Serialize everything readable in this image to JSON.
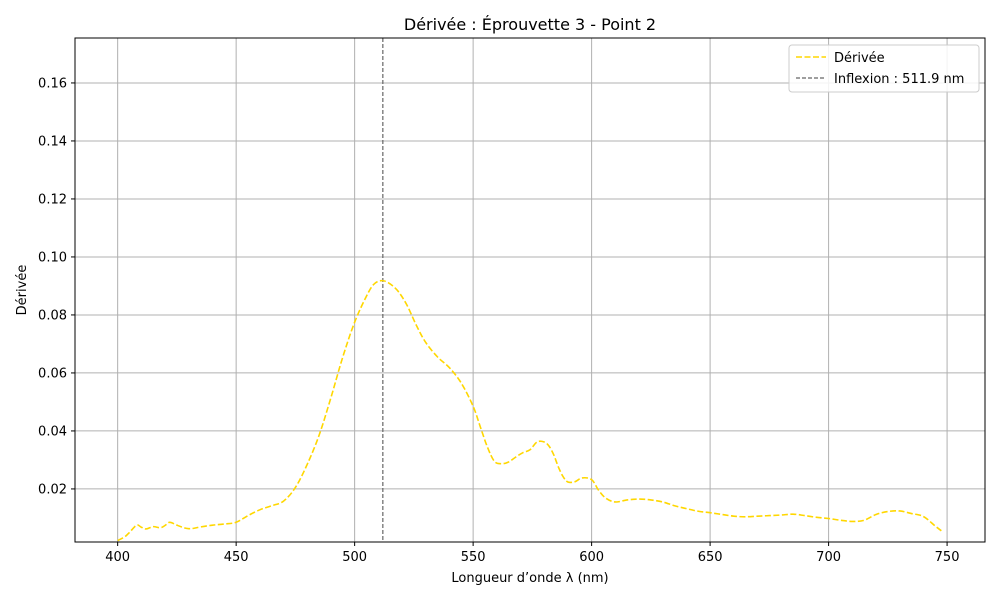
{
  "chart_data": {
    "type": "line",
    "title": "Dérivée : Éprouvette 3 - Point 2",
    "xlabel": "Longueur d’onde λ (nm)",
    "ylabel": "Dérivée",
    "xlim": [
      382,
      766
    ],
    "ylim": [
      0.0017,
      0.1755
    ],
    "xticks": [
      400,
      450,
      500,
      550,
      600,
      650,
      700,
      750
    ],
    "yticks": [
      0.02,
      0.04,
      0.06,
      0.08,
      0.1,
      0.12,
      0.14,
      0.16
    ],
    "ytick_labels": [
      "0.02",
      "0.04",
      "0.06",
      "0.08",
      "0.10",
      "0.12",
      "0.14",
      "0.16"
    ],
    "grid": true,
    "legend_position": "upper-right",
    "series": [
      {
        "name": "Dérivée",
        "color": "#ffd700",
        "style": "dashed",
        "x": [
          400,
          403,
          405,
          408,
          410,
          412,
          415,
          418,
          420,
          422,
          425,
          428,
          430,
          432,
          435,
          440,
          445,
          450,
          455,
          460,
          465,
          470,
          475,
          480,
          485,
          490,
          495,
          500,
          505,
          508,
          511,
          514,
          518,
          522,
          526,
          530,
          535,
          540,
          545,
          550,
          553,
          556,
          559,
          562,
          565,
          568,
          571,
          574,
          577,
          580,
          582,
          584,
          586,
          588,
          590,
          593,
          596,
          600,
          603,
          606,
          610,
          615,
          620,
          625,
          630,
          635,
          640,
          645,
          650,
          655,
          660,
          665,
          670,
          675,
          680,
          685,
          690,
          695,
          700,
          705,
          710,
          715,
          720,
          725,
          730,
          735,
          740,
          745,
          748
        ],
        "y": [
          0.0022,
          0.0035,
          0.005,
          0.0075,
          0.0068,
          0.0062,
          0.007,
          0.0066,
          0.0074,
          0.0085,
          0.0075,
          0.0066,
          0.0063,
          0.0064,
          0.0069,
          0.0075,
          0.0079,
          0.0085,
          0.0108,
          0.0128,
          0.0142,
          0.0158,
          0.0205,
          0.0285,
          0.0385,
          0.0515,
          0.0655,
          0.0775,
          0.0865,
          0.0905,
          0.0918,
          0.0912,
          0.0885,
          0.0835,
          0.0765,
          0.0705,
          0.0655,
          0.0618,
          0.0565,
          0.0485,
          0.0415,
          0.0345,
          0.0295,
          0.0287,
          0.0293,
          0.031,
          0.0325,
          0.0335,
          0.0362,
          0.0362,
          0.0348,
          0.0318,
          0.0275,
          0.0242,
          0.0224,
          0.0225,
          0.0238,
          0.0232,
          0.0195,
          0.0168,
          0.0155,
          0.0162,
          0.0165,
          0.0162,
          0.0155,
          0.0142,
          0.0132,
          0.0123,
          0.0118,
          0.0112,
          0.0106,
          0.0104,
          0.0106,
          0.0108,
          0.011,
          0.0113,
          0.0108,
          0.0102,
          0.0098,
          0.0092,
          0.0088,
          0.0092,
          0.0112,
          0.0122,
          0.0124,
          0.0115,
          0.0105,
          0.0072,
          0.0053
        ]
      }
    ],
    "annotations": [
      {
        "type": "vline",
        "x": 511.9,
        "label": "Inflexion : 511.9 nm",
        "color": "#666666",
        "style": "dashed"
      }
    ]
  }
}
